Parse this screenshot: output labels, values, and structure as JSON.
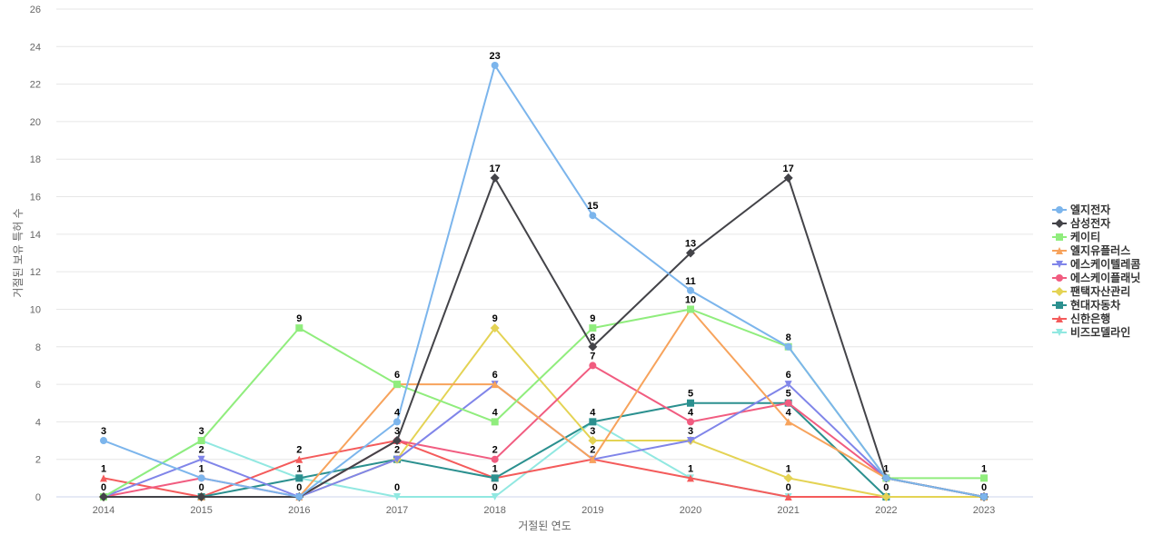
{
  "chart_data": {
    "type": "line",
    "xlabel": "거절된 연도",
    "ylabel": "거절된 보유 특허 수",
    "x": [
      "2014",
      "2015",
      "2016",
      "2017",
      "2018",
      "2019",
      "2020",
      "2021",
      "2022",
      "2023"
    ],
    "ylim": [
      0,
      26
    ],
    "ytick_step": 2,
    "grid": true,
    "legend_position": "right",
    "series": [
      {
        "name": "엘지전자",
        "color": "#7cb5ec",
        "marker": "circle",
        "values": [
          3,
          1,
          0,
          4,
          23,
          15,
          11,
          8,
          1,
          0
        ]
      },
      {
        "name": "삼성전자",
        "color": "#434348",
        "marker": "diamond",
        "values": [
          0,
          0,
          0,
          3,
          17,
          8,
          13,
          17,
          1,
          0
        ]
      },
      {
        "name": "케이티",
        "color": "#90ed7d",
        "marker": "square",
        "values": [
          0,
          3,
          9,
          6,
          4,
          9,
          10,
          8,
          1,
          1
        ]
      },
      {
        "name": "엘지유플러스",
        "color": "#f7a35c",
        "marker": "triangle",
        "values": [
          0,
          0,
          0,
          6,
          6,
          2,
          10,
          4,
          1,
          0
        ]
      },
      {
        "name": "에스케이텔레콤",
        "color": "#8085e9",
        "marker": "triangle-down",
        "values": [
          0,
          2,
          0,
          2,
          6,
          2,
          3,
          6,
          1,
          0
        ]
      },
      {
        "name": "에스케이플래닛",
        "color": "#f15c80",
        "marker": "circle",
        "values": [
          0,
          1,
          0,
          3,
          2,
          7,
          4,
          5,
          1,
          0
        ]
      },
      {
        "name": "팬택자산관리",
        "color": "#e4d354",
        "marker": "diamond",
        "values": [
          0,
          0,
          0,
          2,
          9,
          3,
          3,
          1,
          0,
          0
        ]
      },
      {
        "name": "현대자동차",
        "color": "#2b908f",
        "marker": "square",
        "values": [
          0,
          0,
          1,
          2,
          1,
          4,
          5,
          5,
          0,
          0
        ]
      },
      {
        "name": "신한은행",
        "color": "#f45b5b",
        "marker": "triangle",
        "values": [
          1,
          0,
          2,
          3,
          1,
          2,
          1,
          0,
          0,
          0
        ]
      },
      {
        "name": "비즈모델라인",
        "color": "#91e8e1",
        "marker": "triangle-down",
        "values": [
          0,
          3,
          1,
          0,
          0,
          4,
          1,
          0,
          0,
          0
        ]
      }
    ],
    "data_labels": [
      {
        "x": "2014",
        "text": "3",
        "series": "엘지전자"
      },
      {
        "x": "2014",
        "text": "1",
        "series": "신한은행"
      },
      {
        "x": "2014",
        "text": "0",
        "series": "비즈모델라인"
      },
      {
        "x": "2015",
        "text": "3",
        "series": "케이티"
      },
      {
        "x": "2015",
        "text": "2",
        "series": "에스케이텔레콤"
      },
      {
        "x": "2015",
        "text": "1",
        "series": "에스케이플래닛"
      },
      {
        "x": "2015",
        "text": "0",
        "series": "신한은행"
      },
      {
        "x": "2016",
        "text": "9",
        "series": "케이티"
      },
      {
        "x": "2016",
        "text": "2",
        "series": "신한은행"
      },
      {
        "x": "2016",
        "text": "1",
        "series": "현대자동차"
      },
      {
        "x": "2016",
        "text": "0",
        "series": "엘지유플러스"
      },
      {
        "x": "2017",
        "text": "6",
        "series": "엘지유플러스"
      },
      {
        "x": "2017",
        "text": "4",
        "series": "엘지전자"
      },
      {
        "x": "2017",
        "text": "3",
        "series": "신한은행"
      },
      {
        "x": "2017",
        "text": "2",
        "series": "현대자동차"
      },
      {
        "x": "2017",
        "text": "0",
        "series": "비즈모델라인"
      },
      {
        "x": "2018",
        "text": "23",
        "series": "엘지전자"
      },
      {
        "x": "2018",
        "text": "17",
        "series": "삼성전자"
      },
      {
        "x": "2018",
        "text": "9",
        "series": "팬택자산관리"
      },
      {
        "x": "2018",
        "text": "6",
        "series": "에스케이텔레콤"
      },
      {
        "x": "2018",
        "text": "4",
        "series": "케이티"
      },
      {
        "x": "2018",
        "text": "2",
        "series": "에스케이플래닛"
      },
      {
        "x": "2018",
        "text": "1",
        "series": "현대자동차"
      },
      {
        "x": "2018",
        "text": "0",
        "series": "비즈모델라인"
      },
      {
        "x": "2019",
        "text": "15",
        "series": "엘지전자"
      },
      {
        "x": "2019",
        "text": "9",
        "series": "케이티"
      },
      {
        "x": "2019",
        "text": "8",
        "series": "삼성전자"
      },
      {
        "x": "2019",
        "text": "7",
        "series": "에스케이플래닛"
      },
      {
        "x": "2019",
        "text": "4",
        "series": "현대자동차"
      },
      {
        "x": "2019",
        "text": "3",
        "series": "팬택자산관리"
      },
      {
        "x": "2019",
        "text": "2",
        "series": "엘지유플러스"
      },
      {
        "x": "2020",
        "text": "13",
        "series": "삼성전자"
      },
      {
        "x": "2020",
        "text": "11",
        "series": "엘지전자"
      },
      {
        "x": "2020",
        "text": "10",
        "series": "케이티"
      },
      {
        "x": "2020",
        "text": "5",
        "series": "현대자동차"
      },
      {
        "x": "2020",
        "text": "4",
        "series": "에스케이플래닛"
      },
      {
        "x": "2020",
        "text": "3",
        "series": "팬택자산관리"
      },
      {
        "x": "2020",
        "text": "1",
        "series": "신한은행"
      },
      {
        "x": "2021",
        "text": "17",
        "series": "삼성전자"
      },
      {
        "x": "2021",
        "text": "8",
        "series": "엘지전자"
      },
      {
        "x": "2021",
        "text": "6",
        "series": "에스케이텔레콤"
      },
      {
        "x": "2021",
        "text": "5",
        "series": "현대자동차"
      },
      {
        "x": "2021",
        "text": "4",
        "series": "엘지유플러스"
      },
      {
        "x": "2021",
        "text": "1",
        "series": "팬택자산관리"
      },
      {
        "x": "2021",
        "text": "0",
        "series": "신한은행"
      },
      {
        "x": "2022",
        "text": "1",
        "series": "엘지전자"
      },
      {
        "x": "2022",
        "text": "0",
        "series": "팬택자산관리"
      },
      {
        "x": "2023",
        "text": "1",
        "series": "케이티"
      },
      {
        "x": "2023",
        "text": "0",
        "series": "엘지전자"
      }
    ]
  }
}
